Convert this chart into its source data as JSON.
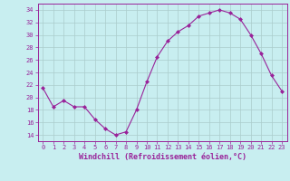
{
  "x": [
    0,
    1,
    2,
    3,
    4,
    5,
    6,
    7,
    8,
    9,
    10,
    11,
    12,
    13,
    14,
    15,
    16,
    17,
    18,
    19,
    20,
    21,
    22,
    23
  ],
  "y": [
    21.5,
    18.5,
    19.5,
    18.5,
    18.5,
    16.5,
    15.0,
    14.0,
    14.5,
    18.0,
    22.5,
    26.5,
    29.0,
    30.5,
    31.5,
    33.0,
    33.5,
    34.0,
    33.5,
    32.5,
    30.0,
    27.0,
    23.5,
    21.0
  ],
  "line_color": "#992299",
  "marker": "D",
  "marker_size": 2.0,
  "bg_color": "#c8eef0",
  "grid_color": "#aacccc",
  "xlabel": "Windchill (Refroidissement éolien,°C)",
  "ylim": [
    13,
    35
  ],
  "xlim": [
    -0.5,
    23.5
  ],
  "yticks": [
    14,
    16,
    18,
    20,
    22,
    24,
    26,
    28,
    30,
    32,
    34
  ],
  "xticks": [
    0,
    1,
    2,
    3,
    4,
    5,
    6,
    7,
    8,
    9,
    10,
    11,
    12,
    13,
    14,
    15,
    16,
    17,
    18,
    19,
    20,
    21,
    22,
    23
  ],
  "tick_fontsize": 5.0,
  "xlabel_fontsize": 6.0
}
